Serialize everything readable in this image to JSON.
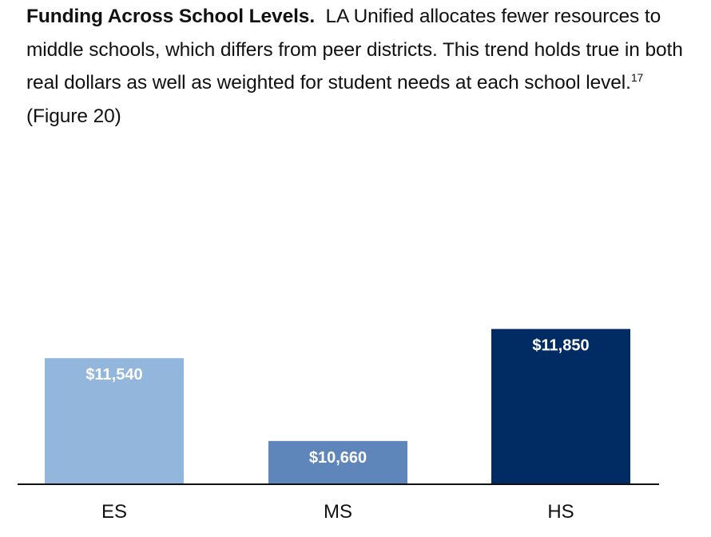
{
  "intro": {
    "lead": "Funding Across School Levels.",
    "body": "LA Unified allocates fewer resources to middle schools, which differs from peer districts. This trend holds true in both real dollars as well as weighted for student needs at each school level.",
    "footnote": "17",
    "figure_ref": "(Figure 20)"
  },
  "chart_data": {
    "type": "bar",
    "title": "",
    "xlabel": "",
    "ylabel": "",
    "categories": [
      "ES",
      "MS",
      "HS"
    ],
    "values": [
      11540,
      10660,
      11850
    ],
    "value_labels": [
      "$11,540",
      "$10,660",
      "$11,850"
    ],
    "colors": [
      "#93b6dc",
      "#5f86bb",
      "#002b63"
    ],
    "ylim": [
      10200,
      12000
    ],
    "grid": false
  }
}
